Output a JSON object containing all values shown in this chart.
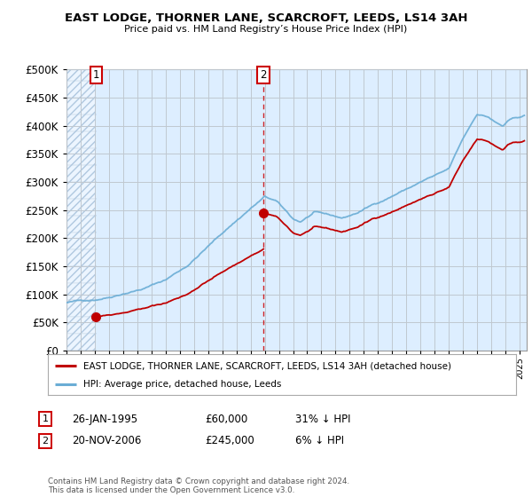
{
  "title": "EAST LODGE, THORNER LANE, SCARCROFT, LEEDS, LS14 3AH",
  "subtitle": "Price paid vs. HM Land Registry’s House Price Index (HPI)",
  "ylim": [
    0,
    500000
  ],
  "yticks": [
    0,
    50000,
    100000,
    150000,
    200000,
    250000,
    300000,
    350000,
    400000,
    450000,
    500000
  ],
  "xlim_start": 1993.0,
  "xlim_end": 2025.5,
  "sale1_year": 1995.08,
  "sale1_price": 60000,
  "sale1_label": "1",
  "sale2_year": 2006.9,
  "sale2_price": 245000,
  "sale2_label": "2",
  "legend_line1": "EAST LODGE, THORNER LANE, SCARCROFT, LEEDS, LS14 3AH (detached house)",
  "legend_line2": "HPI: Average price, detached house, Leeds",
  "table_row1": [
    "1",
    "26-JAN-1995",
    "£60,000",
    "31% ↓ HPI"
  ],
  "table_row2": [
    "2",
    "20-NOV-2006",
    "£245,000",
    "6% ↓ HPI"
  ],
  "footnote": "Contains HM Land Registry data © Crown copyright and database right 2024.\nThis data is licensed under the Open Government Licence v3.0.",
  "hpi_color": "#6aadd5",
  "price_color": "#c00000",
  "chart_bg": "#ddeeff",
  "hatch_color": "#b0c8e0",
  "grid_color": "#c0c8d0",
  "vline_color": "#cc0000"
}
